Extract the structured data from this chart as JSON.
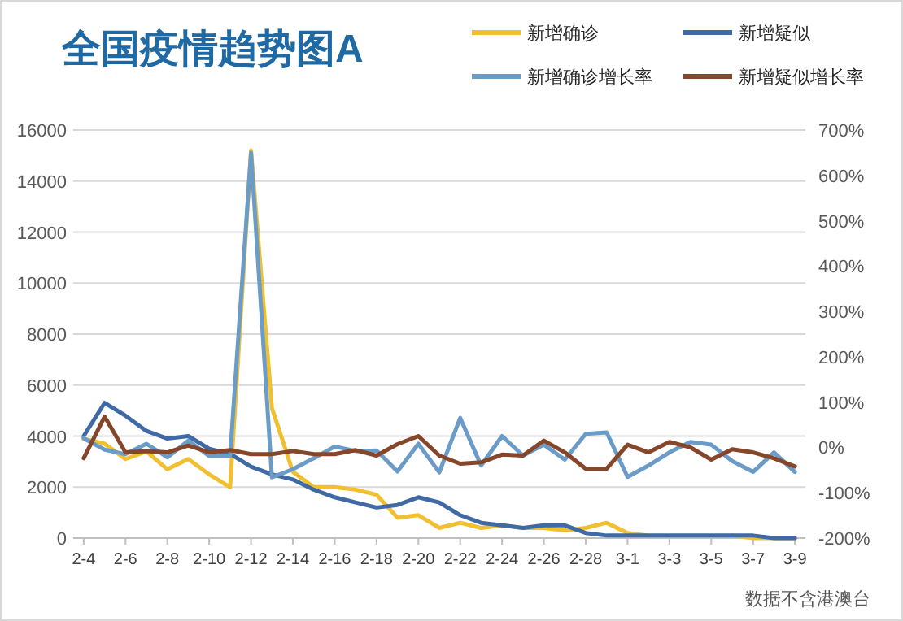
{
  "chart_data": {
    "type": "line",
    "title": "全国疫情趋势图A",
    "categories": [
      "2-4",
      null,
      "2-6",
      null,
      "2-8",
      null,
      "2-10",
      null,
      "2-12",
      null,
      "2-14",
      null,
      "2-16",
      null,
      "2-18",
      null,
      "2-20",
      null,
      "2-22",
      null,
      "2-24",
      null,
      "2-26",
      null,
      "2-28",
      null,
      "3-1",
      null,
      "3-3",
      null,
      "3-5",
      null,
      "3-7",
      null,
      "3-9"
    ],
    "series": [
      {
        "name": "新增确诊",
        "color": "#f0c030",
        "values": [
          3900,
          3700,
          3100,
          3400,
          2700,
          3100,
          2500,
          2000,
          15200,
          5100,
          2600,
          2000,
          2000,
          1900,
          1700,
          800,
          900,
          400,
          600,
          400,
          500,
          400,
          400,
          300,
          400,
          600,
          200,
          100,
          null,
          null,
          null,
          100,
          0,
          0,
          0
        ]
      },
      {
        "name": "新增疑似",
        "color": "#3f6aa6",
        "values": [
          4000,
          5300,
          4800,
          4200,
          3900,
          4000,
          3500,
          3300,
          2800,
          2500,
          2300,
          1900,
          1600,
          1400,
          1200,
          1300,
          1600,
          1400,
          900,
          600,
          500,
          400,
          500,
          500,
          200,
          100,
          100,
          100,
          100,
          100,
          100,
          100,
          100,
          0,
          0
        ]
      },
      {
        "name": "新增确诊增长率",
        "color": "#6b9cc8",
        "axis": "y2",
        "values": [
          20,
          -5,
          -15,
          8,
          -22,
          15,
          -19,
          -19,
          650,
          -66,
          -48,
          -24,
          2,
          -8,
          -7,
          -53,
          8,
          -55,
          65,
          -40,
          25,
          -18,
          6,
          -27,
          30,
          33,
          -65,
          -40,
          -11,
          12,
          6,
          -30,
          -54,
          -11,
          -54
        ]
      },
      {
        "name": "新增疑似增长率",
        "color": "#86462a",
        "axis": "y2",
        "values": [
          -24,
          68,
          -11,
          -8,
          -11,
          4,
          -11,
          -6,
          -15,
          -15,
          -8,
          -15,
          -15,
          -6,
          -18,
          7,
          25,
          -18,
          -36,
          -33,
          -16,
          -18,
          15,
          -11,
          -47,
          -47,
          6,
          -11,
          12,
          0,
          -27,
          -4,
          -11,
          -24,
          -42
        ]
      }
    ],
    "ylim": [
      0,
      16000
    ],
    "yticks": [
      0,
      2000,
      4000,
      6000,
      8000,
      10000,
      12000,
      14000,
      16000
    ],
    "y2lim": [
      -200,
      700
    ],
    "y2ticks": [
      {
        "value": -200,
        "label": "-200%"
      },
      {
        "value": -100,
        "label": "-100%"
      },
      {
        "value": 0,
        "label": "0%"
      },
      {
        "value": 100,
        "label": "100%"
      },
      {
        "value": 200,
        "label": "200%"
      },
      {
        "value": 300,
        "label": "300%"
      },
      {
        "value": 400,
        "label": "400%"
      },
      {
        "value": 500,
        "label": "500%"
      },
      {
        "value": 600,
        "label": "600%"
      },
      {
        "value": 700,
        "label": "700%"
      }
    ],
    "grid": "y",
    "legend": "top",
    "annotations": [
      "数据不含港澳台"
    ]
  }
}
